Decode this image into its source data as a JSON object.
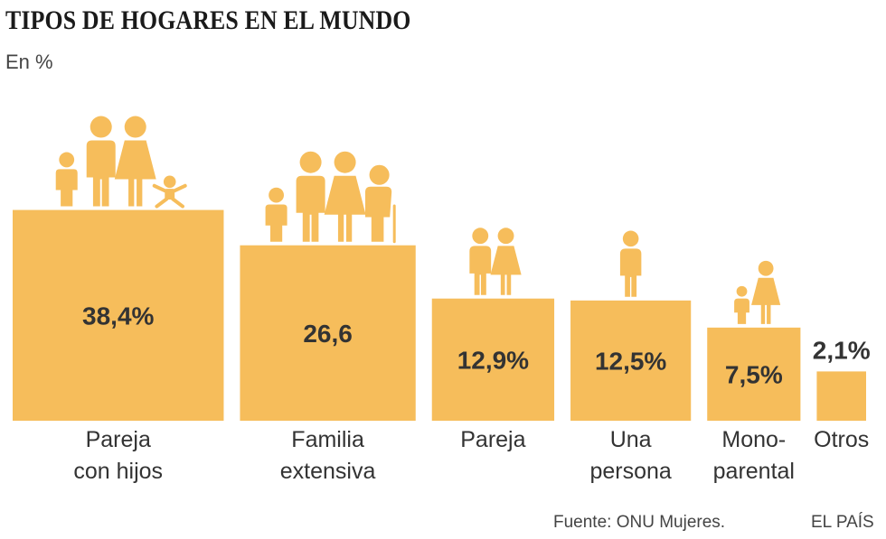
{
  "header": {
    "title": "TIPOS DE HOGARES EN EL MUNDO",
    "subtitle": "En %"
  },
  "footer": {
    "source": "Fuente: ONU Mujeres.",
    "brand": "EL PAÍS"
  },
  "colors": {
    "bar": "#F6BD5B",
    "value_text": "#333333",
    "label_text": "#333333"
  },
  "chart_data": {
    "type": "bar",
    "categories": [
      "Pareja con hijos",
      "Familia extensiva",
      "Pareja",
      "Una persona",
      "Mono-parental",
      "Otros"
    ],
    "category_lines": [
      [
        "Pareja",
        "con hijos"
      ],
      [
        "Familia",
        "extensiva"
      ],
      [
        "Pareja"
      ],
      [
        "Una",
        "persona"
      ],
      [
        "Mono-",
        "parental"
      ],
      [
        "Otros"
      ]
    ],
    "values": [
      38.4,
      26.6,
      12.9,
      12.5,
      7.5,
      2.1
    ],
    "value_labels": [
      "38,4%",
      "26,6",
      "12,9%",
      "12,5%",
      "7,5%",
      "2,1%"
    ],
    "icons": [
      [
        "child-icon",
        "man-icon",
        "woman-icon",
        "baby-icon"
      ],
      [
        "child-icon",
        "man-icon",
        "woman-icon",
        "elder-icon"
      ],
      [
        "man-icon",
        "woman-icon"
      ],
      [
        "man-icon"
      ],
      [
        "child-icon",
        "woman-icon"
      ],
      []
    ],
    "grid": false,
    "legend": "none"
  }
}
